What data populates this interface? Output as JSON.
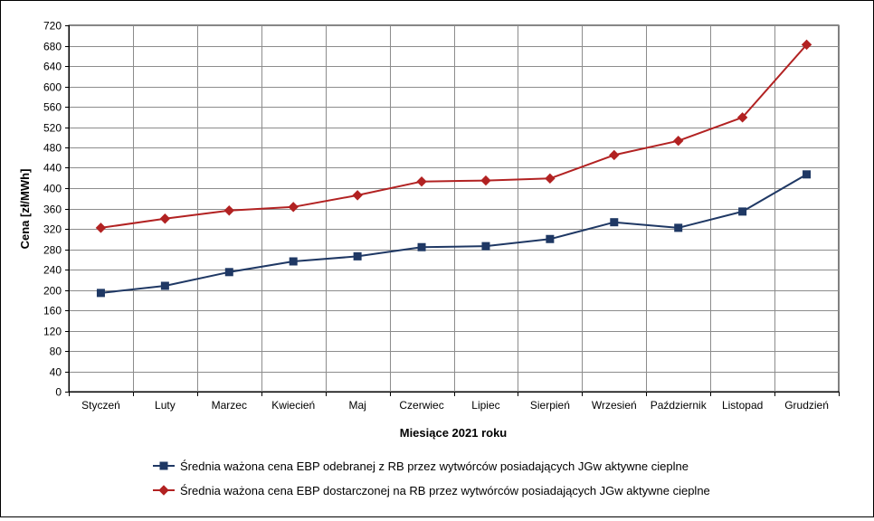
{
  "chart_data": {
    "type": "line",
    "title": "",
    "xlabel": "Miesiące 2021  roku",
    "ylabel": "Cena [zł/MWh]",
    "ylim": [
      0,
      720
    ],
    "ytick_step": 40,
    "yticks": [
      "0",
      "40",
      "80",
      "120",
      "160",
      "200",
      "240",
      "280",
      "320",
      "360",
      "400",
      "440",
      "480",
      "520",
      "560",
      "600",
      "640",
      "680",
      "720"
    ],
    "categories": [
      "Styczeń",
      "Luty",
      "Marzec",
      "Kwiecień",
      "Maj",
      "Czerwiec",
      "Lipiec",
      "Sierpień",
      "Wrzesień",
      "Październik",
      "Listopad",
      "Grudzień"
    ],
    "grid": true,
    "legend_position": "bottom",
    "series": [
      {
        "name": "Średnia ważona cena EBP odebranej z RB przez wytwórców posiadających JGw aktywne cieplne",
        "color": "#1f3864",
        "marker": "square",
        "values": [
          194,
          208,
          235,
          256,
          266,
          284,
          286,
          300,
          333,
          322,
          354,
          427
        ]
      },
      {
        "name": "Średnia ważona cena EBP dostarczonej na RB przez wytwórców posiadających JGw aktywne cieplne",
        "color": "#b22222",
        "marker": "diamond",
        "values": [
          322,
          340,
          356,
          363,
          386,
          413,
          415,
          419,
          465,
          493,
          539,
          682
        ]
      }
    ]
  }
}
